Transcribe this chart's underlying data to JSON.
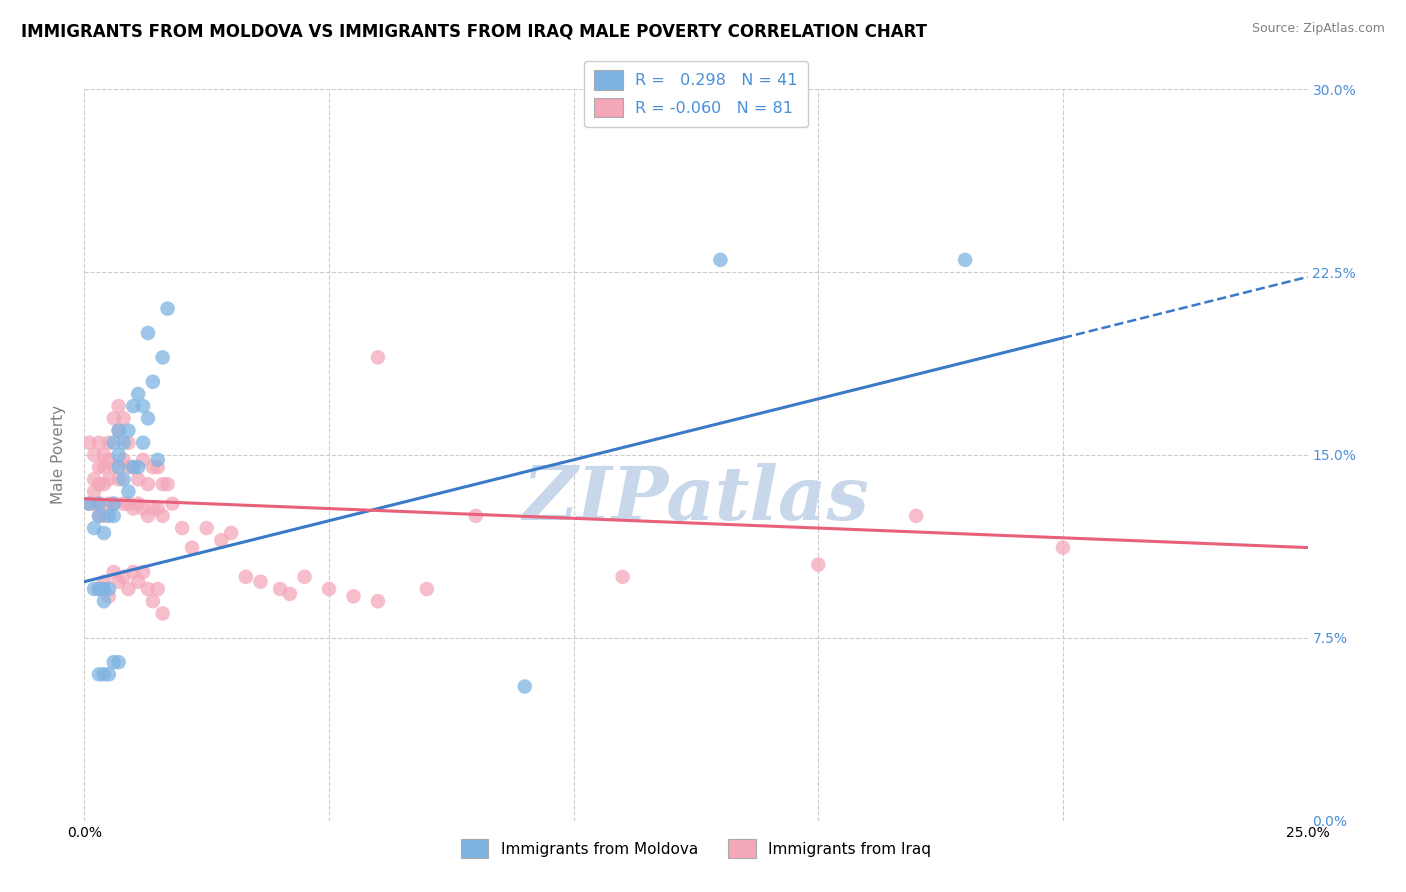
{
  "title": "IMMIGRANTS FROM MOLDOVA VS IMMIGRANTS FROM IRAQ MALE POVERTY CORRELATION CHART",
  "source": "Source: ZipAtlas.com",
  "ylabel": "Male Poverty",
  "xlim": [
    0.0,
    0.25
  ],
  "ylim": [
    0.0,
    0.3
  ],
  "xticks": [
    0.0,
    0.05,
    0.1,
    0.15,
    0.2,
    0.25
  ],
  "yticks": [
    0.0,
    0.075,
    0.15,
    0.225,
    0.3
  ],
  "ytick_labels_right": [
    "0.0%",
    "7.5%",
    "15.0%",
    "22.5%",
    "30.0%"
  ],
  "legend_line1": "R =   0.298   N = 41",
  "legend_line2": "R = -0.060   N = 81",
  "legend_label1": "Immigrants from Moldova",
  "legend_label2": "Immigrants from Iraq",
  "color_moldova": "#7EB4E2",
  "color_iraq": "#F4A7B9",
  "color_moldova_line": "#3A7AC8",
  "color_iraq_line": "#E8607A",
  "background_color": "#FFFFFF",
  "grid_color": "#CCCCCC",
  "watermark": "ZIPatlas",
  "watermark_color": "#C8D8EA",
  "title_fontsize": 12,
  "axis_label_fontsize": 11,
  "tick_fontsize": 10,
  "moldova_x": [
    0.001,
    0.002,
    0.002,
    0.003,
    0.003,
    0.003,
    0.004,
    0.004,
    0.004,
    0.005,
    0.005,
    0.006,
    0.006,
    0.006,
    0.007,
    0.007,
    0.007,
    0.008,
    0.008,
    0.009,
    0.009,
    0.01,
    0.01,
    0.011,
    0.011,
    0.012,
    0.012,
    0.013,
    0.013,
    0.014,
    0.015,
    0.016,
    0.017,
    0.003,
    0.004,
    0.005,
    0.006,
    0.007,
    0.09,
    0.18,
    0.13
  ],
  "moldova_y": [
    0.13,
    0.12,
    0.095,
    0.13,
    0.125,
    0.095,
    0.118,
    0.09,
    0.095,
    0.125,
    0.095,
    0.13,
    0.125,
    0.155,
    0.145,
    0.15,
    0.16,
    0.14,
    0.155,
    0.135,
    0.16,
    0.145,
    0.17,
    0.145,
    0.175,
    0.155,
    0.17,
    0.165,
    0.2,
    0.18,
    0.148,
    0.19,
    0.21,
    0.06,
    0.06,
    0.06,
    0.065,
    0.065,
    0.055,
    0.23,
    0.23
  ],
  "iraq_x": [
    0.001,
    0.001,
    0.002,
    0.002,
    0.002,
    0.002,
    0.003,
    0.003,
    0.003,
    0.003,
    0.003,
    0.004,
    0.004,
    0.004,
    0.004,
    0.005,
    0.005,
    0.005,
    0.005,
    0.006,
    0.006,
    0.006,
    0.007,
    0.007,
    0.007,
    0.008,
    0.008,
    0.008,
    0.009,
    0.009,
    0.009,
    0.01,
    0.01,
    0.011,
    0.011,
    0.012,
    0.012,
    0.013,
    0.013,
    0.014,
    0.014,
    0.015,
    0.015,
    0.016,
    0.016,
    0.017,
    0.018,
    0.02,
    0.022,
    0.025,
    0.028,
    0.03,
    0.033,
    0.036,
    0.04,
    0.042,
    0.045,
    0.05,
    0.055,
    0.06,
    0.003,
    0.004,
    0.005,
    0.006,
    0.007,
    0.008,
    0.009,
    0.01,
    0.011,
    0.012,
    0.013,
    0.014,
    0.015,
    0.016,
    0.11,
    0.15,
    0.2,
    0.06,
    0.07,
    0.08,
    0.17
  ],
  "iraq_y": [
    0.13,
    0.155,
    0.14,
    0.135,
    0.13,
    0.15,
    0.138,
    0.155,
    0.145,
    0.13,
    0.125,
    0.15,
    0.145,
    0.138,
    0.125,
    0.155,
    0.148,
    0.14,
    0.13,
    0.165,
    0.145,
    0.13,
    0.17,
    0.16,
    0.14,
    0.165,
    0.148,
    0.13,
    0.145,
    0.155,
    0.13,
    0.145,
    0.128,
    0.14,
    0.13,
    0.148,
    0.128,
    0.138,
    0.125,
    0.145,
    0.128,
    0.145,
    0.128,
    0.138,
    0.125,
    0.138,
    0.13,
    0.12,
    0.112,
    0.12,
    0.115,
    0.118,
    0.1,
    0.098,
    0.095,
    0.093,
    0.1,
    0.095,
    0.092,
    0.09,
    0.095,
    0.098,
    0.092,
    0.102,
    0.098,
    0.1,
    0.095,
    0.102,
    0.098,
    0.102,
    0.095,
    0.09,
    0.095,
    0.085,
    0.1,
    0.105,
    0.112,
    0.19,
    0.095,
    0.125,
    0.125
  ],
  "trendline_moldova_x0": 0.0,
  "trendline_moldova_y0": 0.098,
  "trendline_moldova_x1": 0.2,
  "trendline_moldova_y1": 0.198,
  "trendline_iraq_x0": 0.0,
  "trendline_iraq_y0": 0.132,
  "trendline_iraq_x1": 0.25,
  "trendline_iraq_y1": 0.112
}
